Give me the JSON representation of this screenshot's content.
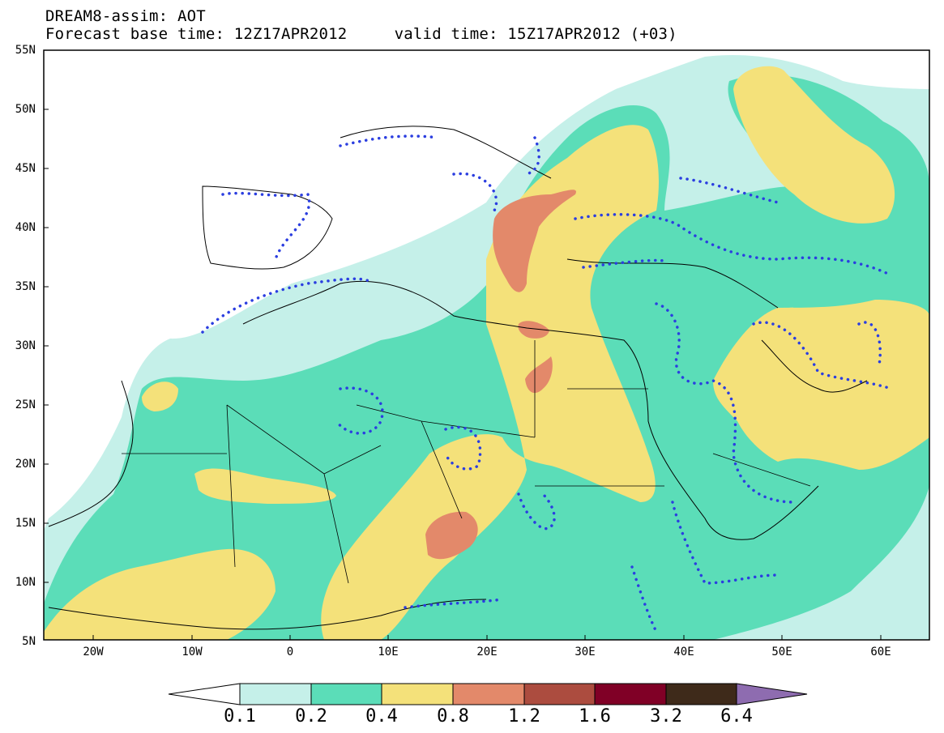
{
  "title_line1": "DREAM8-assim: AOT",
  "title_line2": "Forecast base time: 12Z17APR2012     valid time: 15Z17APR2012 (+03)",
  "y_ticks": [
    "55N",
    "50N",
    "45N",
    "40N",
    "35N",
    "30N",
    "25N",
    "20N",
    "15N",
    "10N",
    "5N"
  ],
  "x_ticks": [
    "20W",
    "10W",
    "0",
    "10E",
    "20E",
    "30E",
    "40E",
    "50E",
    "60E"
  ],
  "colorbar": {
    "levels": [
      "0.1",
      "0.2",
      "0.4",
      "0.8",
      "1.2",
      "1.6",
      "3.2",
      "6.4"
    ],
    "colors": [
      "#c5f0e9",
      "#5bddb8",
      "#f4e17a",
      "#e3896a",
      "#ac4c3f",
      "#800026",
      "#3e2a1a",
      "#8e6cb0"
    ]
  },
  "chart_data": {
    "type": "map",
    "variable": "AOT",
    "model": "DREAM8-assim",
    "lon_range": [
      -25,
      65
    ],
    "lat_range": [
      5,
      55
    ],
    "projection": "lat-lon"
  }
}
